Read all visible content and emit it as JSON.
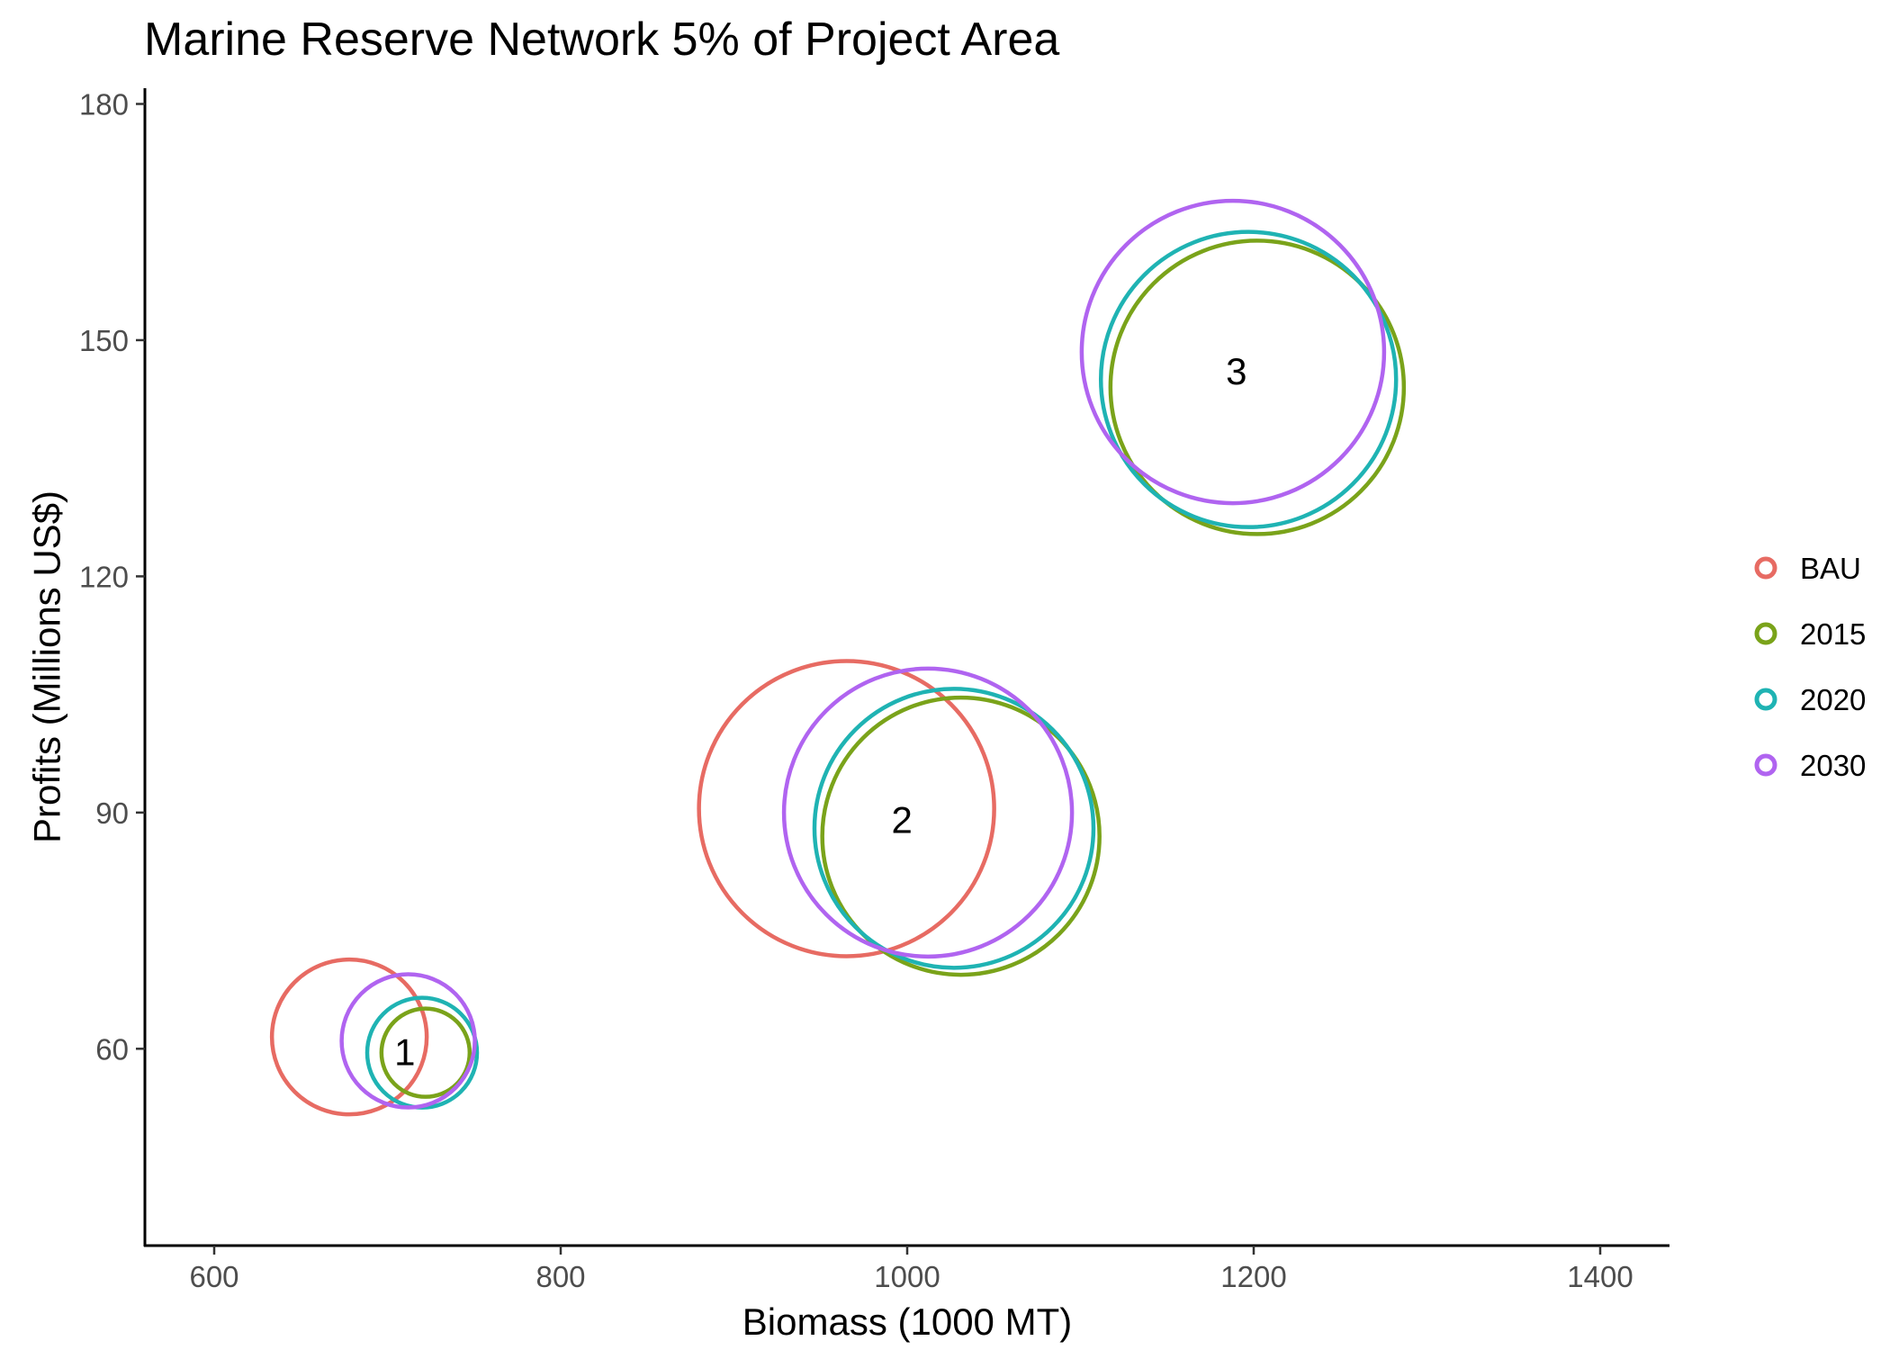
{
  "chart_data": {
    "type": "scatter",
    "title": "Marine Reserve Network 5% of Project Area",
    "xlabel": "Biomass (1000 MT)",
    "ylabel": "Profits (Millions US$)",
    "xlim": [
      560,
      1440
    ],
    "ylim": [
      35,
      182
    ],
    "x_ticks": [
      600,
      800,
      1000,
      1200,
      1400
    ],
    "y_ticks": [
      60,
      90,
      120,
      150,
      180
    ],
    "grid": false,
    "legend_position": "right",
    "bubbles": "open circles sized by value",
    "series": [
      {
        "name": "BAU",
        "color": "#E76B63",
        "points": [
          {
            "x": 678,
            "y": 61.5,
            "size": 86
          },
          {
            "x": 965,
            "y": 90.5,
            "size": 164
          }
        ]
      },
      {
        "name": "2015",
        "color": "#7AA31A",
        "points": [
          {
            "x": 722,
            "y": 59.5,
            "size": 49
          },
          {
            "x": 1031,
            "y": 87.0,
            "size": 154
          },
          {
            "x": 1202,
            "y": 144.0,
            "size": 163
          }
        ]
      },
      {
        "name": "2020",
        "color": "#1FB3B3",
        "points": [
          {
            "x": 720,
            "y": 59.5,
            "size": 61
          },
          {
            "x": 1027,
            "y": 88.0,
            "size": 155
          },
          {
            "x": 1197,
            "y": 145.0,
            "size": 164
          }
        ]
      },
      {
        "name": "2030",
        "color": "#B064F0",
        "points": [
          {
            "x": 712,
            "y": 61.0,
            "size": 74
          },
          {
            "x": 1012,
            "y": 90.0,
            "size": 160
          },
          {
            "x": 1188,
            "y": 148.5,
            "size": 168
          }
        ]
      }
    ],
    "annotations": [
      {
        "text": "1",
        "x": 710,
        "y": 59.5
      },
      {
        "text": "2",
        "x": 997,
        "y": 89.0
      },
      {
        "text": "3",
        "x": 1190,
        "y": 146.0
      }
    ]
  }
}
